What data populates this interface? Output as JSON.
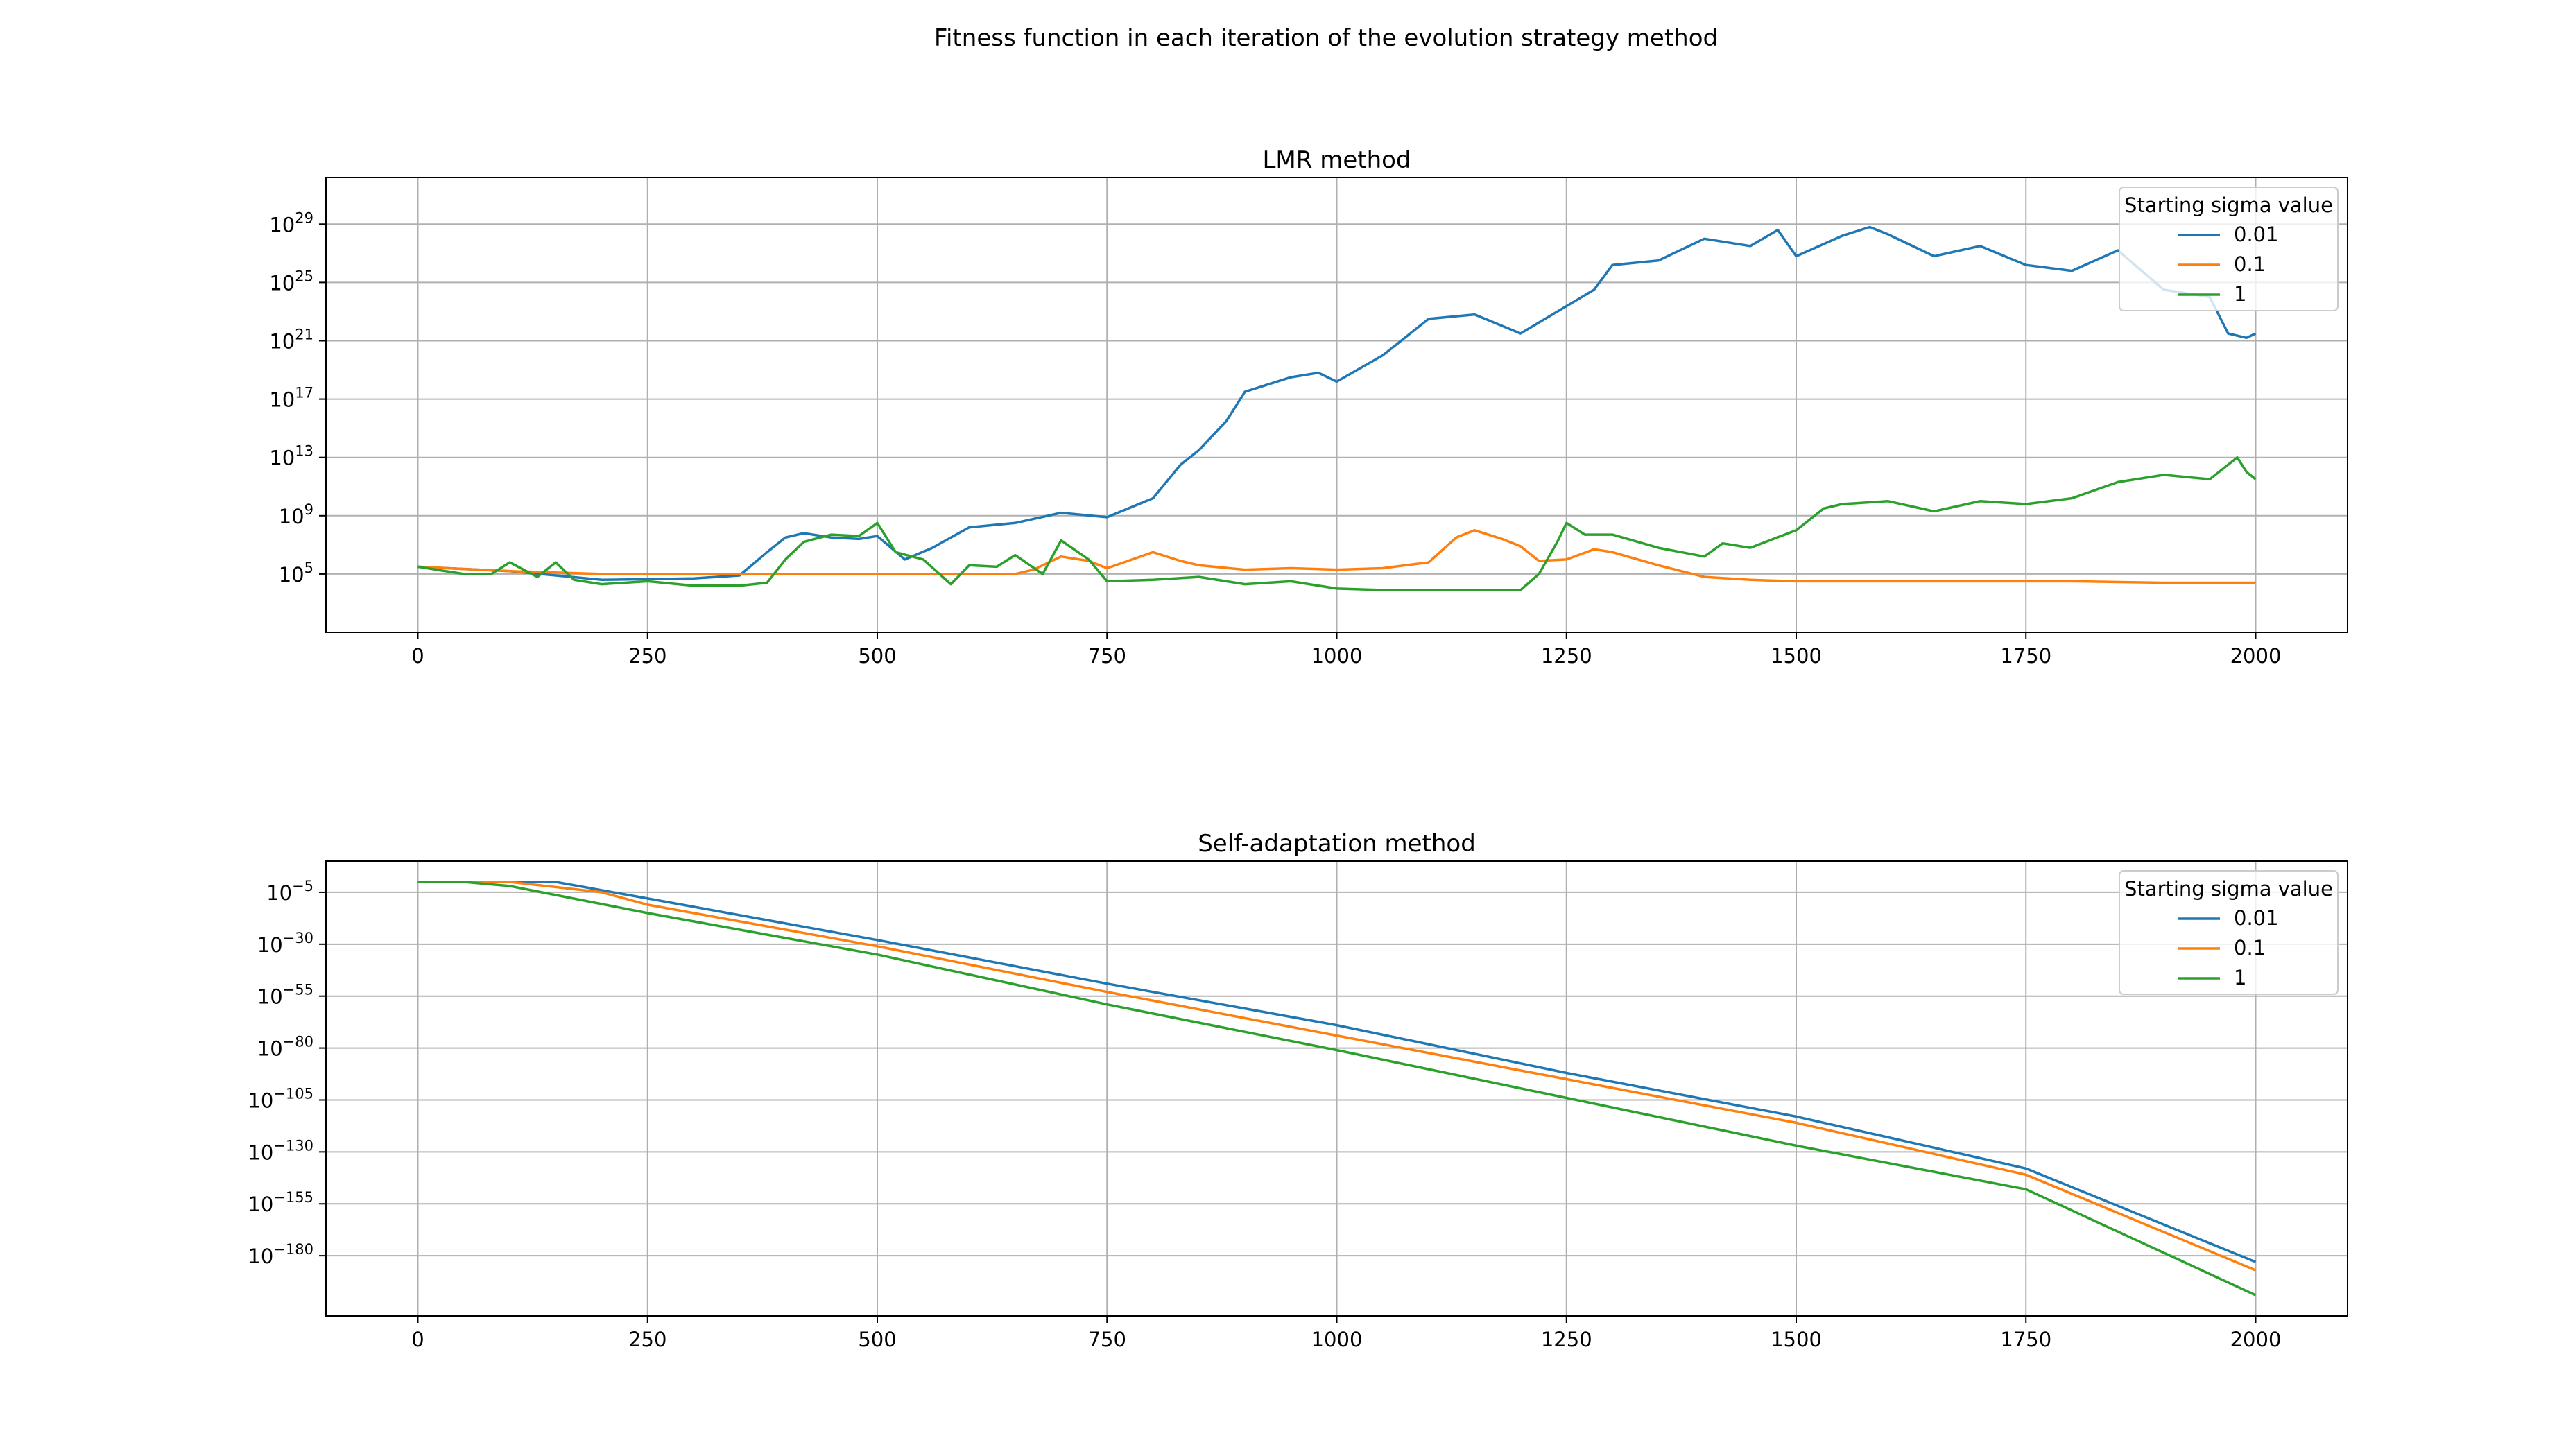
{
  "figure": {
    "suptitle": "Fitness function in each iteration of the evolution strategy method"
  },
  "colors": {
    "0.01": "#1f77b4",
    "0.1": "#ff7f0e",
    "1": "#2ca02c",
    "grid": "#b0b0b0"
  },
  "chart_data": [
    {
      "type": "line",
      "title": "LMR method",
      "xlabel": "",
      "ylabel": "",
      "yscale": "log",
      "xlim": [
        -100,
        2100
      ],
      "ylim_log10": [
        1,
        32.2
      ],
      "grid": true,
      "legend": {
        "title": "Starting sigma value",
        "placement": "top-right"
      },
      "xticks": [
        "0",
        "250",
        "500",
        "750",
        "1000",
        "1250",
        "1500",
        "1750",
        "2000"
      ],
      "ytick_exponents": [
        "5",
        "9",
        "13",
        "17",
        "21",
        "25",
        "29"
      ],
      "series": [
        {
          "name": "0.01",
          "x": [
            0,
            100,
            200,
            300,
            350,
            380,
            400,
            420,
            450,
            480,
            500,
            530,
            560,
            600,
            650,
            700,
            750,
            800,
            830,
            850,
            880,
            900,
            950,
            980,
            1000,
            1050,
            1100,
            1150,
            1200,
            1240,
            1280,
            1300,
            1350,
            1400,
            1450,
            1480,
            1500,
            1550,
            1580,
            1600,
            1650,
            1700,
            1750,
            1800,
            1850,
            1900,
            1950,
            1970,
            1990,
            2000
          ],
          "y_log10": [
            5.5,
            5.2,
            4.6,
            4.7,
            4.9,
            6.5,
            7.5,
            7.8,
            7.5,
            7.4,
            7.6,
            6.0,
            6.8,
            8.2,
            8.5,
            9.2,
            8.9,
            10.2,
            12.5,
            13.5,
            15.5,
            17.5,
            18.5,
            18.8,
            18.2,
            20.0,
            22.5,
            22.8,
            21.5,
            23.0,
            24.5,
            26.2,
            26.5,
            28.0,
            27.5,
            28.6,
            26.8,
            28.2,
            28.8,
            28.3,
            26.8,
            27.5,
            26.2,
            25.8,
            27.2,
            24.5,
            24.0,
            21.5,
            21.2,
            21.5
          ]
        },
        {
          "name": "0.1",
          "x": [
            0,
            100,
            200,
            300,
            400,
            500,
            600,
            650,
            670,
            700,
            730,
            750,
            800,
            830,
            850,
            900,
            950,
            1000,
            1050,
            1100,
            1130,
            1150,
            1180,
            1200,
            1220,
            1250,
            1280,
            1300,
            1350,
            1400,
            1450,
            1500,
            1550,
            1600,
            1700,
            1800,
            1900,
            2000
          ],
          "y_log10": [
            5.5,
            5.2,
            5.0,
            5.0,
            5.0,
            5.0,
            5.0,
            5.0,
            5.3,
            6.2,
            5.9,
            5.4,
            6.5,
            5.9,
            5.6,
            5.3,
            5.4,
            5.3,
            5.4,
            5.8,
            7.5,
            8.0,
            7.4,
            6.9,
            5.9,
            6.0,
            6.7,
            6.5,
            5.6,
            4.8,
            4.6,
            4.5,
            4.5,
            4.5,
            4.5,
            4.5,
            4.4,
            4.4
          ]
        },
        {
          "name": "1",
          "x": [
            0,
            50,
            80,
            100,
            130,
            150,
            170,
            200,
            250,
            300,
            350,
            380,
            400,
            420,
            450,
            480,
            500,
            520,
            550,
            580,
            600,
            630,
            650,
            680,
            700,
            730,
            750,
            800,
            850,
            900,
            950,
            1000,
            1050,
            1100,
            1150,
            1200,
            1220,
            1240,
            1250,
            1270,
            1300,
            1350,
            1400,
            1420,
            1450,
            1500,
            1530,
            1550,
            1600,
            1650,
            1700,
            1750,
            1800,
            1850,
            1900,
            1950,
            1970,
            1980,
            1990,
            2000
          ],
          "y_log10": [
            5.5,
            5.0,
            5.0,
            5.8,
            4.8,
            5.8,
            4.6,
            4.3,
            4.5,
            4.2,
            4.2,
            4.4,
            6.0,
            7.2,
            7.7,
            7.6,
            8.5,
            6.5,
            6.0,
            4.3,
            5.6,
            5.5,
            6.3,
            5.0,
            7.3,
            6.0,
            4.5,
            4.6,
            4.8,
            4.3,
            4.5,
            4.0,
            3.9,
            3.9,
            3.9,
            3.9,
            5.0,
            7.2,
            8.5,
            7.7,
            7.7,
            6.8,
            6.2,
            7.1,
            6.8,
            8.0,
            9.5,
            9.8,
            10.0,
            9.3,
            10.0,
            9.8,
            10.2,
            11.3,
            11.8,
            11.5,
            12.5,
            13.0,
            12.0,
            11.5
          ]
        }
      ]
    },
    {
      "type": "line",
      "title": "Self-adaptation method",
      "xlabel": "",
      "ylabel": "",
      "yscale": "log",
      "xlim": [
        -100,
        2100
      ],
      "ylim_log10": [
        -209,
        10
      ],
      "grid": true,
      "legend": {
        "title": "Starting sigma value",
        "placement": "top-right"
      },
      "xticks": [
        "0",
        "250",
        "500",
        "750",
        "1000",
        "1250",
        "1500",
        "1750",
        "2000"
      ],
      "ytick_exponents": [
        "−5",
        "−30",
        "−55",
        "−80",
        "−105",
        "−130",
        "−155",
        "−180"
      ],
      "series": [
        {
          "name": "0.01",
          "x": [
            0,
            150,
            250,
            500,
            750,
            1000,
            1250,
            1500,
            1750,
            2000
          ],
          "y_log10": [
            0,
            0,
            -8,
            -28,
            -49,
            -69,
            -92,
            -113,
            -138,
            -183
          ]
        },
        {
          "name": "0.1",
          "x": [
            0,
            100,
            200,
            250,
            500,
            750,
            1000,
            1250,
            1500,
            1750,
            2000
          ],
          "y_log10": [
            0,
            0,
            -5,
            -11,
            -31,
            -53,
            -74,
            -95,
            -116,
            -141,
            -187
          ]
        },
        {
          "name": "1",
          "x": [
            0,
            50,
            100,
            250,
            500,
            750,
            1000,
            1250,
            1500,
            1750,
            2000
          ],
          "y_log10": [
            0,
            0,
            -2,
            -15,
            -35,
            -59,
            -81,
            -104,
            -127,
            -148,
            -199
          ]
        }
      ]
    }
  ]
}
